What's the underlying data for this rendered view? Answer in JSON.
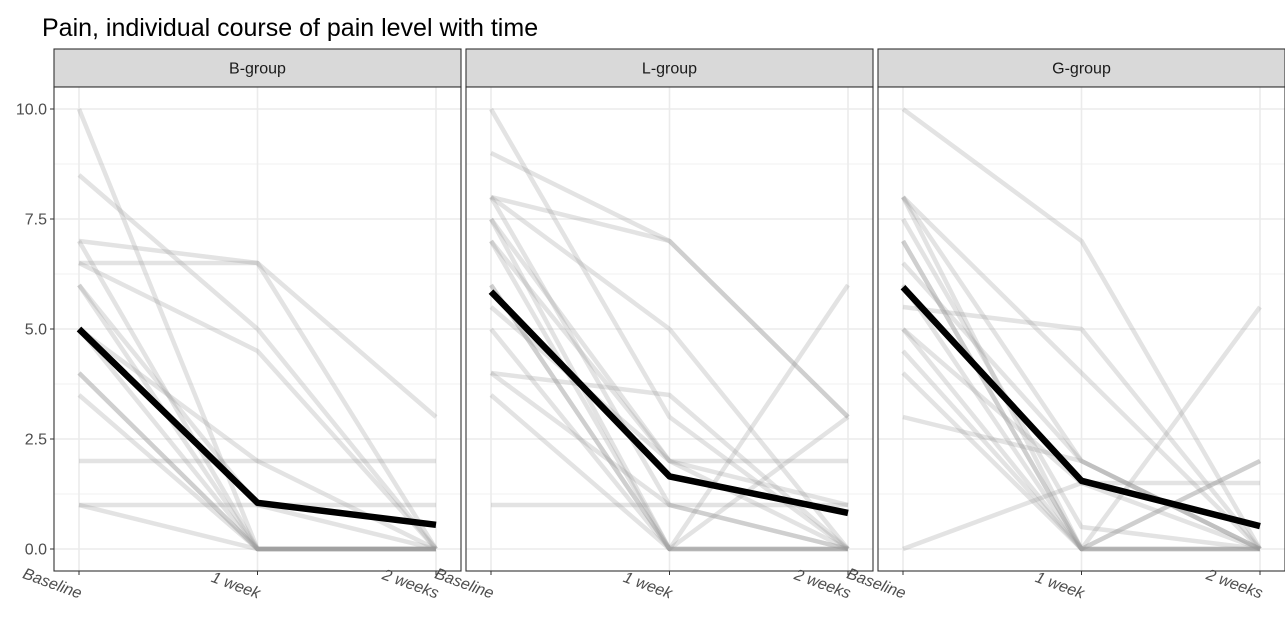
{
  "chart_data": {
    "type": "line",
    "title": "Pain, individual course of pain level with time",
    "xlabel": "",
    "ylabel": "",
    "categories": [
      "Baseline",
      "1 week",
      "2 weeks"
    ],
    "ylim": [
      -0.5,
      10.5
    ],
    "yticks": [
      "0.0",
      "2.5",
      "5.0",
      "7.5",
      "10.0"
    ],
    "grid": true,
    "colors": {
      "individual": "#9a9a9a",
      "mean": "#000000",
      "strip": "#d9d9d9",
      "grid": "#ebebeb",
      "border": "#333333"
    },
    "panels": [
      {
        "label": "B-group",
        "mean": [
          5.0,
          1.05,
          0.55
        ],
        "individuals": [
          [
            10,
            0,
            0
          ],
          [
            8.5,
            5,
            0
          ],
          [
            7,
            6.5,
            0
          ],
          [
            6.5,
            6.5,
            3
          ],
          [
            6.5,
            4.5,
            0
          ],
          [
            6,
            0,
            0
          ],
          [
            6,
            1,
            0
          ],
          [
            5,
            0,
            0
          ],
          [
            4,
            0,
            0
          ],
          [
            4,
            0,
            0
          ],
          [
            3.5,
            0,
            0
          ],
          [
            2,
            2,
            2
          ],
          [
            1,
            1,
            1
          ],
          [
            1,
            0,
            0
          ],
          [
            7,
            0,
            0
          ],
          [
            5,
            2,
            0
          ]
        ]
      },
      {
        "label": "L-group",
        "mean": [
          5.85,
          1.65,
          0.82
        ],
        "individuals": [
          [
            10,
            3,
            0
          ],
          [
            9,
            7,
            3
          ],
          [
            8,
            5,
            0
          ],
          [
            8,
            7,
            3
          ],
          [
            7.5,
            0,
            3
          ],
          [
            7,
            0,
            0
          ],
          [
            7,
            2,
            0
          ],
          [
            6,
            0,
            0
          ],
          [
            5.5,
            2,
            1
          ],
          [
            5,
            0,
            0
          ],
          [
            4,
            3.5,
            0
          ],
          [
            4,
            1,
            0
          ],
          [
            3.5,
            0,
            6
          ],
          [
            1,
            1,
            1
          ],
          [
            7.5,
            2,
            2
          ],
          [
            6,
            0,
            0
          ],
          [
            8,
            1,
            0
          ]
        ]
      },
      {
        "label": "G-group",
        "mean": [
          5.95,
          1.55,
          0.52
        ],
        "individuals": [
          [
            10,
            7,
            0
          ],
          [
            8,
            4,
            0
          ],
          [
            8,
            2,
            0
          ],
          [
            7.5,
            0.5,
            0
          ],
          [
            7,
            0,
            0
          ],
          [
            7,
            0,
            0
          ],
          [
            6,
            0,
            2
          ],
          [
            5.5,
            5,
            0
          ],
          [
            5,
            1.5,
            0
          ],
          [
            5,
            0,
            0
          ],
          [
            4,
            0,
            5.5
          ],
          [
            3,
            2,
            0
          ],
          [
            0,
            1.5,
            1.5
          ],
          [
            8,
            0,
            0
          ],
          [
            6.5,
            2,
            0
          ],
          [
            4.5,
            0,
            2
          ]
        ]
      }
    ]
  }
}
